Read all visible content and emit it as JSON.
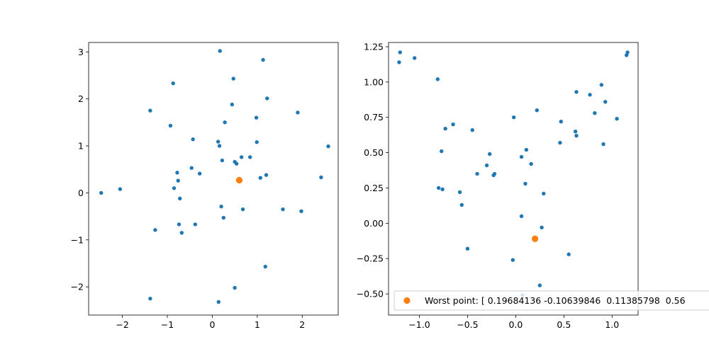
{
  "chart_data": [
    {
      "type": "scatter",
      "xlim": [
        -2.75,
        2.8
      ],
      "ylim": [
        -2.6,
        3.2
      ],
      "xticks": [
        -2,
        -1,
        0,
        1,
        2
      ],
      "yticks": [
        -2,
        -1,
        0,
        1,
        2,
        3
      ],
      "xtick_labels": [
        "−2",
        "−1",
        "0",
        "1",
        "2"
      ],
      "ytick_labels": [
        "−2",
        "−1",
        "0",
        "1",
        "2",
        "3"
      ],
      "colors": {
        "points": "#1f77b4",
        "highlight": "#ff7f0e"
      },
      "grid": false,
      "series": [
        {
          "points": [
            [
              -2.47,
              0.0
            ],
            [
              -2.05,
              0.08
            ],
            [
              -1.38,
              1.75
            ],
            [
              -1.38,
              -2.25
            ],
            [
              -1.27,
              -0.79
            ],
            [
              -0.93,
              1.43
            ],
            [
              -0.87,
              2.33
            ],
            [
              -0.85,
              0.1
            ],
            [
              -0.78,
              0.43
            ],
            [
              -0.76,
              0.26
            ],
            [
              -0.74,
              -0.67
            ],
            [
              -0.72,
              -0.12
            ],
            [
              -0.68,
              -0.85
            ],
            [
              -0.46,
              0.53
            ],
            [
              -0.43,
              1.14
            ],
            [
              -0.38,
              -0.67
            ],
            [
              -0.28,
              0.41
            ],
            [
              0.13,
              1.09
            ],
            [
              0.14,
              -2.32
            ],
            [
              0.16,
              1.0
            ],
            [
              0.17,
              3.02
            ],
            [
              0.2,
              -0.29
            ],
            [
              0.22,
              0.69
            ],
            [
              0.25,
              -0.53
            ],
            [
              0.28,
              1.5
            ],
            [
              0.44,
              1.88
            ],
            [
              0.47,
              2.43
            ],
            [
              0.5,
              0.66
            ],
            [
              0.5,
              -2.02
            ],
            [
              0.54,
              0.62
            ],
            [
              0.65,
              0.76
            ],
            [
              0.68,
              -0.35
            ],
            [
              0.84,
              0.76
            ],
            [
              0.98,
              1.6
            ],
            [
              0.99,
              1.08
            ],
            [
              1.07,
              0.32
            ],
            [
              1.13,
              2.83
            ],
            [
              1.18,
              -1.57
            ],
            [
              1.2,
              0.38
            ],
            [
              1.22,
              2.01
            ],
            [
              1.57,
              -0.35
            ],
            [
              1.9,
              1.71
            ],
            [
              1.98,
              -0.39
            ],
            [
              2.42,
              0.33
            ],
            [
              2.58,
              0.99
            ]
          ]
        },
        {
          "highlight": true,
          "points": [
            [
              0.6,
              0.27
            ]
          ]
        }
      ]
    },
    {
      "type": "scatter",
      "xlim": [
        -1.32,
        1.27
      ],
      "ylim": [
        -0.65,
        1.28
      ],
      "xticks": [
        -1.0,
        -0.5,
        0.0,
        0.5,
        1.0
      ],
      "yticks": [
        -0.5,
        -0.25,
        0.0,
        0.25,
        0.5,
        0.75,
        1.0,
        1.25
      ],
      "xtick_labels": [
        "−1.0",
        "−0.5",
        "0.0",
        "0.5",
        "1.0"
      ],
      "ytick_labels": [
        "−0.50",
        "−0.25",
        "0.00",
        "0.25",
        "0.50",
        "0.75",
        "1.00",
        "1.25"
      ],
      "colors": {
        "points": "#1f77b4",
        "highlight": "#ff7f0e"
      },
      "grid": false,
      "legend_position": "lower-right",
      "legend_text": "Worst point: [ 0.19684136 -0.10639846  0.11385798  0.56",
      "series": [
        {
          "points": [
            [
              -1.2,
              1.21
            ],
            [
              -1.21,
              1.14
            ],
            [
              -1.05,
              1.17
            ],
            [
              -0.81,
              1.02
            ],
            [
              -0.8,
              0.25
            ],
            [
              -0.77,
              0.51
            ],
            [
              -0.76,
              0.24
            ],
            [
              -0.73,
              0.67
            ],
            [
              -0.65,
              0.7
            ],
            [
              -0.58,
              0.22
            ],
            [
              -0.56,
              0.13
            ],
            [
              -0.5,
              -0.18
            ],
            [
              -0.45,
              0.66
            ],
            [
              -0.4,
              0.35
            ],
            [
              -0.3,
              0.41
            ],
            [
              -0.27,
              0.49
            ],
            [
              -0.23,
              0.34
            ],
            [
              -0.22,
              0.35
            ],
            [
              -0.03,
              -0.26
            ],
            [
              -0.02,
              0.75
            ],
            [
              0.06,
              0.47
            ],
            [
              0.06,
              0.05
            ],
            [
              0.07,
              -0.51
            ],
            [
              0.1,
              0.28
            ],
            [
              0.11,
              0.52
            ],
            [
              0.16,
              0.42
            ],
            [
              0.22,
              0.8
            ],
            [
              0.25,
              -0.44
            ],
            [
              0.27,
              -0.03
            ],
            [
              0.29,
              0.21
            ],
            [
              0.46,
              0.57
            ],
            [
              0.47,
              0.72
            ],
            [
              0.55,
              -0.22
            ],
            [
              0.62,
              0.65
            ],
            [
              0.63,
              0.62
            ],
            [
              0.63,
              0.93
            ],
            [
              0.77,
              0.91
            ],
            [
              0.82,
              0.78
            ],
            [
              0.89,
              0.98
            ],
            [
              0.91,
              0.56
            ],
            [
              0.93,
              0.86
            ],
            [
              1.05,
              0.74
            ],
            [
              1.15,
              1.19
            ],
            [
              1.16,
              1.21
            ]
          ]
        },
        {
          "highlight": true,
          "points": [
            [
              0.2,
              -0.11
            ]
          ]
        }
      ]
    }
  ]
}
